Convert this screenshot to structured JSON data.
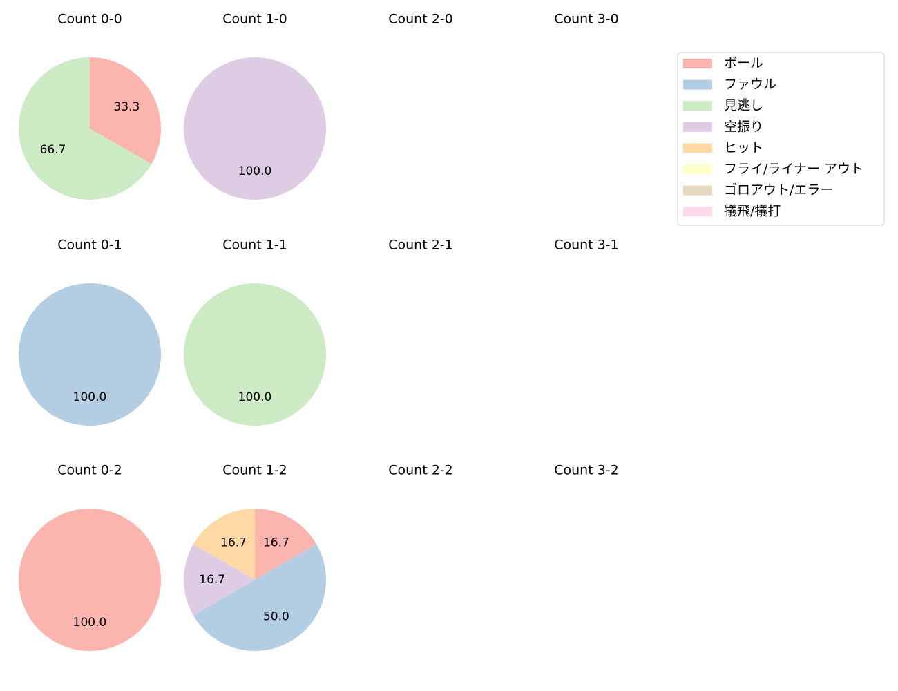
{
  "legend": {
    "items": [
      {
        "label": "ボール",
        "color": "#fbb4ae"
      },
      {
        "label": "ファウル",
        "color": "#b3cde3"
      },
      {
        "label": "見逃し",
        "color": "#ccebc5"
      },
      {
        "label": "空振り",
        "color": "#decbe4"
      },
      {
        "label": "ヒット",
        "color": "#fed9a6"
      },
      {
        "label": "フライ/ライナー アウト",
        "color": "#ffffcc"
      },
      {
        "label": "ゴロアウト/エラー",
        "color": "#e5d8bd"
      },
      {
        "label": "犠飛/犠打",
        "color": "#fddaec"
      }
    ]
  },
  "chart_data": [
    {
      "type": "pie",
      "title": "Count 0-0",
      "slices": [
        {
          "category": "ボール",
          "value": 33.3,
          "label": "33.3"
        },
        {
          "category": "見逃し",
          "value": 66.7,
          "label": "66.7"
        }
      ]
    },
    {
      "type": "pie",
      "title": "Count 1-0",
      "slices": [
        {
          "category": "空振り",
          "value": 100.0,
          "label": "100.0"
        }
      ]
    },
    {
      "type": "pie",
      "title": "Count 2-0",
      "slices": []
    },
    {
      "type": "pie",
      "title": "Count 3-0",
      "slices": []
    },
    {
      "type": "pie",
      "title": "Count 0-1",
      "slices": [
        {
          "category": "ファウル",
          "value": 100.0,
          "label": "100.0"
        }
      ]
    },
    {
      "type": "pie",
      "title": "Count 1-1",
      "slices": [
        {
          "category": "見逃し",
          "value": 100.0,
          "label": "100.0"
        }
      ]
    },
    {
      "type": "pie",
      "title": "Count 2-1",
      "slices": []
    },
    {
      "type": "pie",
      "title": "Count 3-1",
      "slices": []
    },
    {
      "type": "pie",
      "title": "Count 0-2",
      "slices": [
        {
          "category": "ボール",
          "value": 100.0,
          "label": "100.0"
        }
      ]
    },
    {
      "type": "pie",
      "title": "Count 1-2",
      "slices": [
        {
          "category": "ボール",
          "value": 16.7,
          "label": "16.7"
        },
        {
          "category": "ファウル",
          "value": 50.0,
          "label": "50.0"
        },
        {
          "category": "空振り",
          "value": 16.7,
          "label": "16.7"
        },
        {
          "category": "ヒット",
          "value": 16.7,
          "label": "16.7"
        }
      ]
    },
    {
      "type": "pie",
      "title": "Count 2-2",
      "slices": []
    },
    {
      "type": "pie",
      "title": "Count 3-2",
      "slices": []
    }
  ]
}
